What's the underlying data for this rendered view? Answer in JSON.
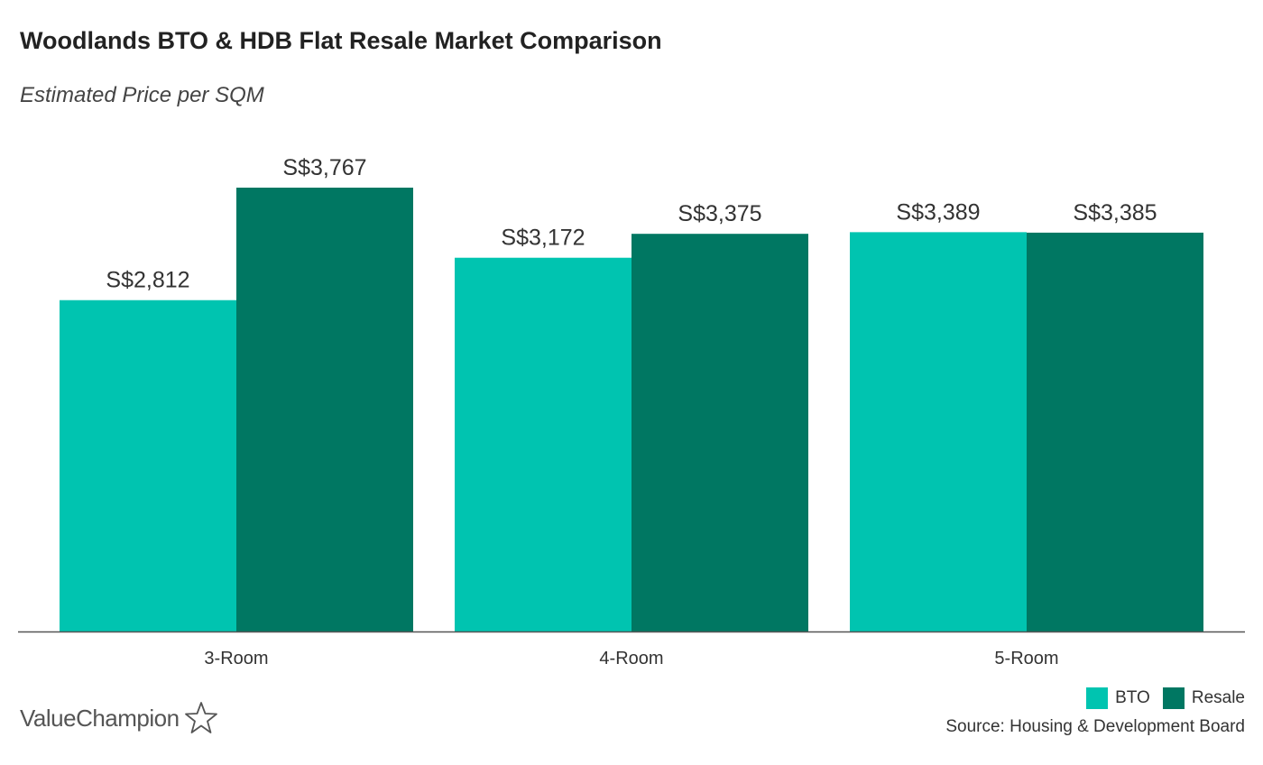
{
  "header": {
    "title": "Woodlands BTO & HDB Flat Resale Market Comparison",
    "subtitle": "Estimated Price per SQM"
  },
  "chart_data": {
    "type": "bar",
    "categories": [
      "3-Room",
      "4-Room",
      "5-Room"
    ],
    "series": [
      {
        "name": "BTO",
        "values": [
          2812,
          3172,
          3389
        ],
        "labels": [
          "S$2,812",
          "S$3,172",
          "S$3,389"
        ],
        "color": "#00c4b0"
      },
      {
        "name": "Resale",
        "values": [
          3767,
          3375,
          3385
        ],
        "labels": [
          "S$3,767",
          "S$3,375",
          "S$3,385"
        ],
        "color": "#007762"
      }
    ],
    "ylim": [
      0,
      3767
    ],
    "grid": false,
    "legend_position": "bottom-right"
  },
  "footer": {
    "source": "Source: Housing & Development Board",
    "brand": "ValueChampion",
    "brand_icon": "star-outline-icon"
  }
}
